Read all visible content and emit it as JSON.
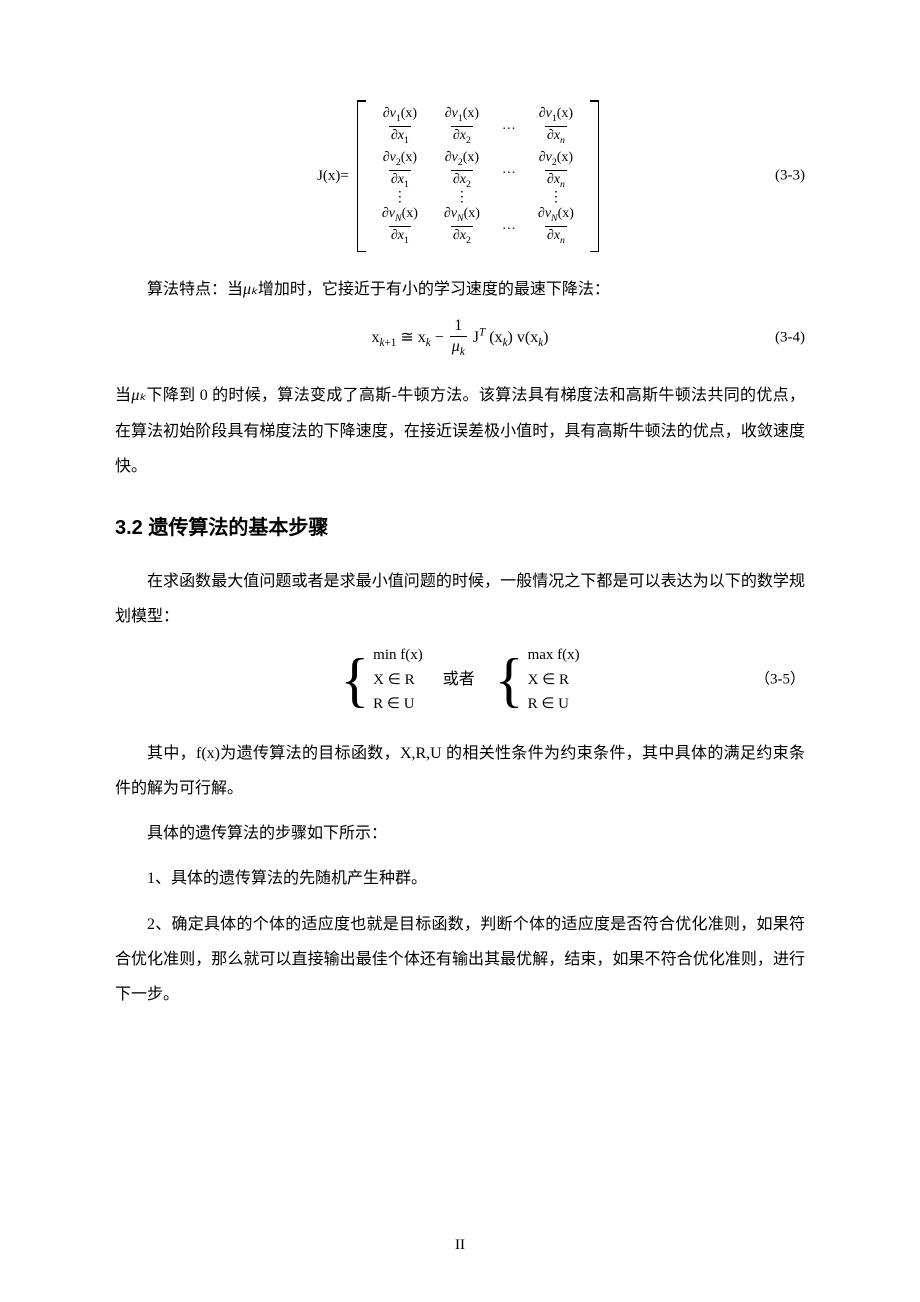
{
  "eq33": {
    "lhs": "J(x)=",
    "number": "(3-3)",
    "rows": [
      [
        "∂v₁(x)/∂x₁",
        "∂v₁(x)/∂x₂",
        "…",
        "∂v₁(x)/∂xₙ"
      ],
      [
        "∂v₂(x)/∂x₁",
        "∂v₂(x)/∂x₂",
        "…",
        "∂v₂(x)/∂xₙ"
      ],
      [
        "⋮",
        "⋮",
        "",
        "⋮"
      ],
      [
        "∂vN(x)/∂x₁",
        "∂vN(x)/∂x₂",
        "…",
        "∂vN(x)/∂xₙ"
      ]
    ]
  },
  "p1": {
    "pre": "算法特点：当",
    "muk": "μₖ",
    "post": "增加时，它接近于有小的学习速度的最速下降法："
  },
  "eq34": {
    "number": "(3-4)",
    "lhs": "x",
    "kplus1": "k+1",
    "approx": " ≅ ",
    "xk": "x",
    "ksub": "k",
    "minus": " − ",
    "frac_num": "1",
    "frac_den": "μₖ",
    "jT": "Jᵀ",
    "arg1": "(xₖ)",
    "v": "v",
    "arg2": "(xₖ)"
  },
  "p2": {
    "pre": "当",
    "muk": "μₖ",
    "post": "下降到 0 的时候，算法变成了高斯-牛顿方法。该算法具有梯度法和高斯牛顿法共同的优点，在算法初始阶段具有梯度法的下降速度，在接近误差极小值时，具有高斯牛顿法的优点，收敛速度快。"
  },
  "section": "3.2 遗传算法的基本步骤",
  "p3": "在求函数最大值问题或者是求最小值问题的时候，一般情况之下都是可以表达为以下的数学规划模型：",
  "eq35": {
    "number": "（3-5）",
    "left": [
      "min f(x)",
      "X ∈ R",
      "R ∈ U"
    ],
    "mid": "或者",
    "right": [
      "max f(x)",
      "X ∈ R",
      "R ∈ U"
    ]
  },
  "p4": "其中，f(x)为遗传算法的目标函数，X,R,U 的相关性条件为约束条件，其中具体的满足约束条件的解为可行解。",
  "p5": "具体的遗传算法的步骤如下所示：",
  "p6": "1、具体的遗传算法的先随机产生种群。",
  "p7": "2、确定具体的个体的适应度也就是目标函数，判断个体的适应度是否符合优化准则，如果符合优化准则，那么就可以直接输出最佳个体还有输出其最优解，结束，如果不符合优化准则，进行下一步。",
  "pageno": "II"
}
